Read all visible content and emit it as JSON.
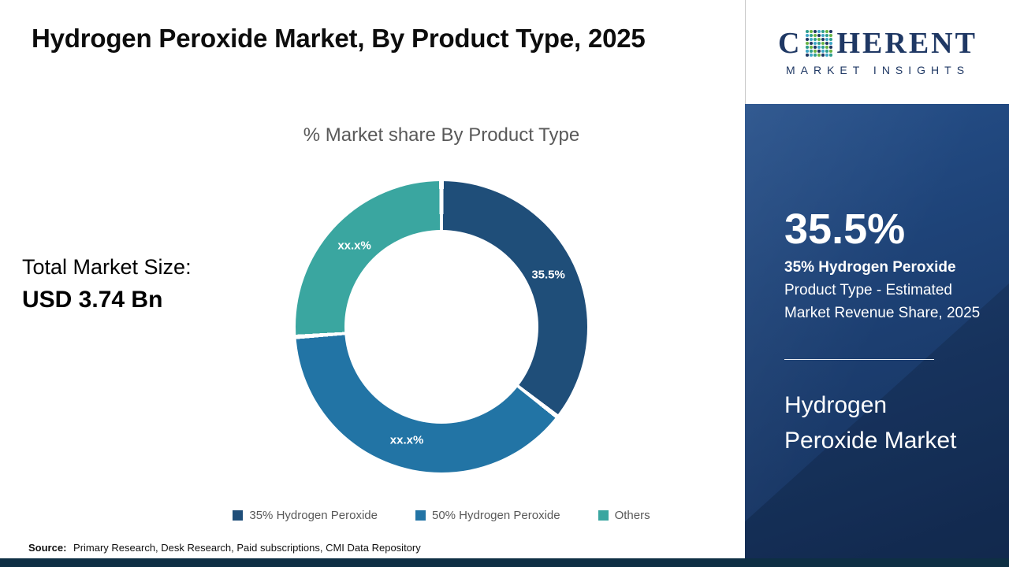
{
  "page": {
    "title": "Hydrogen Peroxide Market, By Product Type, 2025"
  },
  "total_market": {
    "label": "Total Market Size:",
    "value": "USD 3.74 Bn"
  },
  "source": {
    "label": "Source:",
    "text": "Primary Research, Desk Research, Paid subscriptions, CMI Data Repository"
  },
  "logo": {
    "prefix": "C",
    "suffix": "HERENT",
    "tagline": "MARKET INSIGHTS"
  },
  "sidebar": {
    "stat_value": "35.5%",
    "stat_bold": "35% Hydrogen Peroxide",
    "stat_desc": "Product Type - Estimated Market Revenue Share, 2025",
    "market_name": "Hydrogen Peroxide Market",
    "background_color": "#1e4378"
  },
  "chart_data": {
    "type": "pie",
    "donut": true,
    "title": "% Market share By Product Type",
    "legend_position": "bottom",
    "start_angle_deg": 0,
    "direction": "clockwise",
    "segments": [
      {
        "label": "35% Hydrogen Peroxide",
        "display_label": "35.5%",
        "value": 35.5,
        "color": "#1F4E79"
      },
      {
        "label": "50% Hydrogen Peroxide",
        "display_label": "xx.x%",
        "value": 38.4,
        "color": "#2274A5"
      },
      {
        "label": "Others",
        "display_label": "xx.x%",
        "value": 26.1,
        "color": "#3AA6A0"
      }
    ]
  }
}
